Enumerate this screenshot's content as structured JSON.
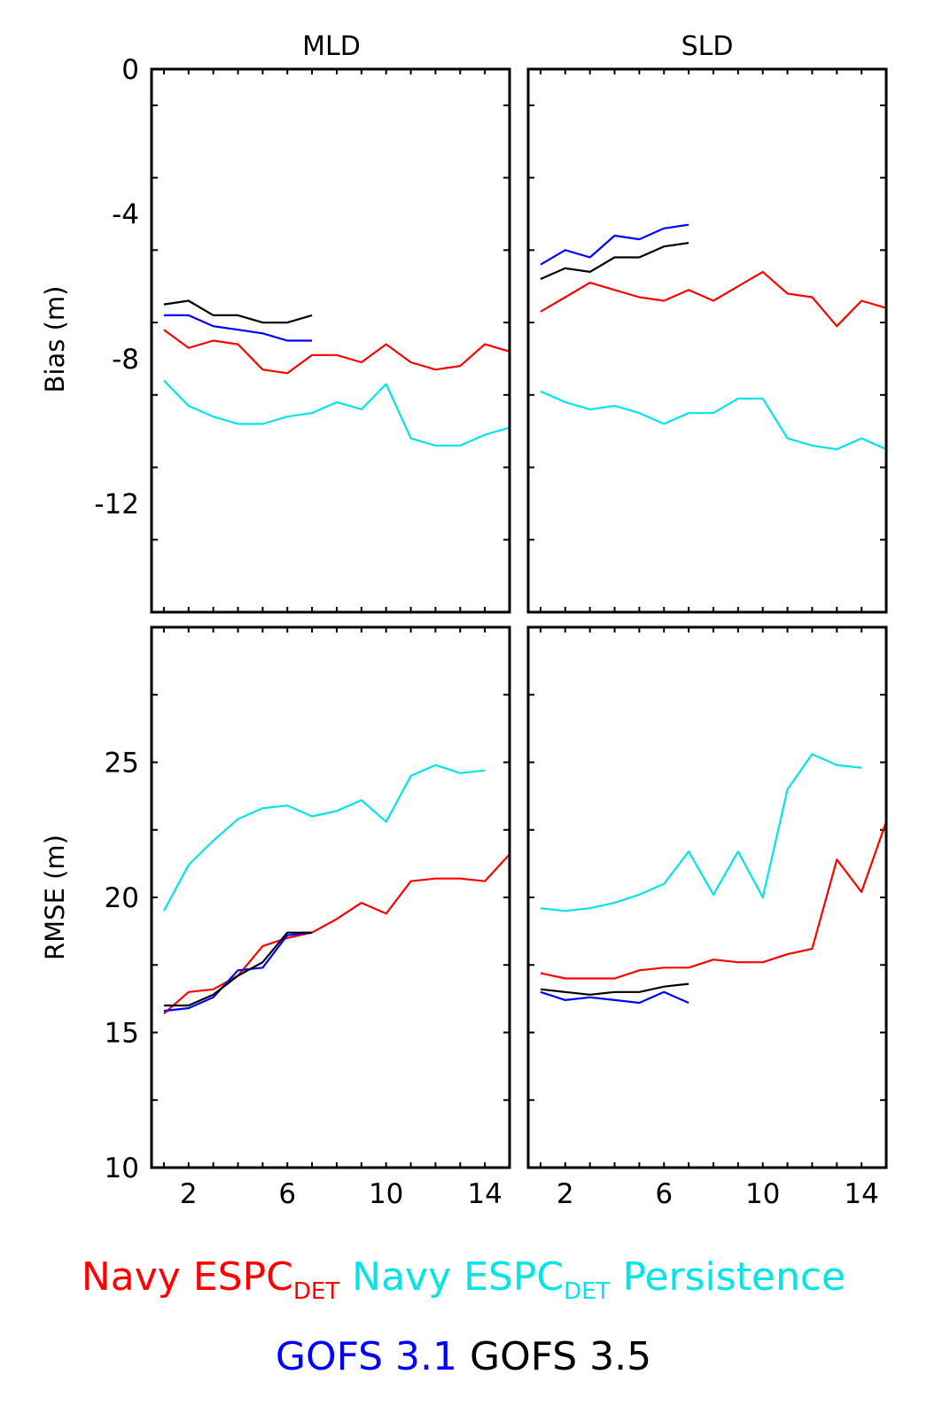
{
  "column_titles": [
    "MLD",
    "SLD"
  ],
  "row_labels": [
    "Bias (m)",
    "RMSE (m)"
  ],
  "legend": {
    "row1": [
      {
        "main": "Navy ESPC",
        "sub": "DET",
        "suffix": "",
        "color": "#ff0000"
      },
      {
        "main": "Navy ESPC",
        "sub": "DET",
        "suffix": " Persistence",
        "color": "#00e5e5"
      }
    ],
    "row2": [
      {
        "main": "GOFS 3.1",
        "sub": "",
        "suffix": "",
        "color": "#0000ff"
      },
      {
        "main": "GOFS 3.5",
        "sub": "",
        "suffix": "",
        "color": "#000000"
      }
    ]
  },
  "chart_data": [
    {
      "type": "line",
      "title": "MLD",
      "xlabel": "",
      "ylabel": "Bias (m)",
      "xlim": [
        0.5,
        15
      ],
      "ylim": [
        -15,
        0
      ],
      "xticks": [
        2,
        6,
        10,
        14
      ],
      "yticks": [
        0,
        -4,
        -8,
        -12
      ],
      "series": [
        {
          "name": "Navy ESPC DET",
          "color": "#ff0000",
          "x": [
            1,
            2,
            3,
            4,
            5,
            6,
            7,
            8,
            9,
            10,
            11,
            12,
            13,
            14,
            15
          ],
          "y": [
            -7.2,
            -7.7,
            -7.5,
            -7.6,
            -8.3,
            -8.4,
            -7.9,
            -7.9,
            -8.1,
            -7.6,
            -8.1,
            -8.3,
            -8.2,
            -7.6,
            -7.8
          ]
        },
        {
          "name": "Navy ESPC DET Persistence",
          "color": "#00e5e5",
          "x": [
            1,
            2,
            3,
            4,
            5,
            6,
            7,
            8,
            9,
            10,
            11,
            12,
            13,
            14,
            15
          ],
          "y": [
            -8.6,
            -9.3,
            -9.6,
            -9.8,
            -9.8,
            -9.6,
            -9.5,
            -9.2,
            -9.4,
            -8.7,
            -10.2,
            -10.4,
            -10.4,
            -10.1,
            -9.9
          ]
        },
        {
          "name": "GOFS 3.1",
          "color": "#0000ff",
          "x": [
            1,
            2,
            3,
            4,
            5,
            6,
            7
          ],
          "y": [
            -6.8,
            -6.8,
            -7.1,
            -7.2,
            -7.3,
            -7.5,
            -7.5
          ]
        },
        {
          "name": "GOFS 3.5",
          "color": "#000000",
          "x": [
            1,
            2,
            3,
            4,
            5,
            6,
            7
          ],
          "y": [
            -6.5,
            -6.4,
            -6.8,
            -6.8,
            -7.0,
            -7.0,
            -6.8
          ]
        }
      ]
    },
    {
      "type": "line",
      "title": "SLD",
      "xlabel": "",
      "ylabel": "",
      "xlim": [
        0.5,
        15
      ],
      "ylim": [
        -15,
        0
      ],
      "xticks": [
        2,
        6,
        10,
        14
      ],
      "yticks": [
        0,
        -4,
        -8,
        -12
      ],
      "series": [
        {
          "name": "Navy ESPC DET",
          "color": "#ff0000",
          "x": [
            1,
            2,
            3,
            4,
            5,
            6,
            7,
            8,
            9,
            10,
            11,
            12,
            13,
            14,
            15
          ],
          "y": [
            -6.7,
            -6.3,
            -5.9,
            -6.1,
            -6.3,
            -6.4,
            -6.1,
            -6.4,
            -6.0,
            -5.6,
            -6.2,
            -6.3,
            -7.1,
            -6.4,
            -6.6
          ]
        },
        {
          "name": "Navy ESPC DET Persistence",
          "color": "#00e5e5",
          "x": [
            1,
            2,
            3,
            4,
            5,
            6,
            7,
            8,
            9,
            10,
            11,
            12,
            13,
            14,
            15
          ],
          "y": [
            -8.9,
            -9.2,
            -9.4,
            -9.3,
            -9.5,
            -9.8,
            -9.5,
            -9.5,
            -9.1,
            -9.1,
            -10.2,
            -10.4,
            -10.5,
            -10.2,
            -10.5
          ]
        },
        {
          "name": "GOFS 3.1",
          "color": "#0000ff",
          "x": [
            1,
            2,
            3,
            4,
            5,
            6,
            7
          ],
          "y": [
            -5.4,
            -5.0,
            -5.2,
            -4.6,
            -4.7,
            -4.4,
            -4.3
          ]
        },
        {
          "name": "GOFS 3.5",
          "color": "#000000",
          "x": [
            1,
            2,
            3,
            4,
            5,
            6,
            7
          ],
          "y": [
            -5.8,
            -5.5,
            -5.6,
            -5.2,
            -5.2,
            -4.9,
            -4.8
          ]
        }
      ]
    },
    {
      "type": "line",
      "title": "",
      "xlabel": "",
      "ylabel": "RMSE (m)",
      "xlim": [
        0.5,
        15
      ],
      "ylim": [
        10,
        30
      ],
      "xticks": [
        2,
        6,
        10,
        14
      ],
      "yticks": [
        10,
        15,
        20,
        25
      ],
      "series": [
        {
          "name": "Navy ESPC DET",
          "color": "#ff0000",
          "x": [
            1,
            2,
            3,
            4,
            5,
            6,
            7,
            8,
            9,
            10,
            11,
            12,
            13,
            14,
            15
          ],
          "y": [
            15.7,
            16.5,
            16.6,
            17.1,
            18.2,
            18.5,
            18.7,
            19.2,
            19.8,
            19.4,
            20.6,
            20.7,
            20.7,
            20.6,
            21.6
          ]
        },
        {
          "name": "Navy ESPC DET Persistence",
          "color": "#00e5e5",
          "x": [
            1,
            2,
            3,
            4,
            5,
            6,
            7,
            8,
            9,
            10,
            11,
            12,
            13,
            14
          ],
          "y": [
            19.5,
            21.2,
            22.1,
            22.9,
            23.3,
            23.4,
            23.0,
            23.2,
            23.6,
            22.8,
            24.5,
            24.9,
            24.6,
            24.7
          ]
        },
        {
          "name": "GOFS 3.1",
          "color": "#0000ff",
          "x": [
            1,
            2,
            3,
            4,
            5,
            6,
            7
          ],
          "y": [
            15.8,
            15.9,
            16.3,
            17.3,
            17.4,
            18.6,
            18.7
          ]
        },
        {
          "name": "GOFS 3.5",
          "color": "#000000",
          "x": [
            1,
            2,
            3,
            4,
            5,
            6,
            7
          ],
          "y": [
            16.0,
            16.0,
            16.4,
            17.1,
            17.6,
            18.7,
            18.7
          ]
        }
      ]
    },
    {
      "type": "line",
      "title": "",
      "xlabel": "",
      "ylabel": "",
      "xlim": [
        0.5,
        15
      ],
      "ylim": [
        10,
        30
      ],
      "xticks": [
        2,
        6,
        10,
        14
      ],
      "yticks": [
        10,
        15,
        20,
        25
      ],
      "series": [
        {
          "name": "Navy ESPC DET",
          "color": "#ff0000",
          "x": [
            1,
            2,
            3,
            4,
            5,
            6,
            7,
            8,
            9,
            10,
            11,
            12,
            13,
            14,
            15
          ],
          "y": [
            17.2,
            17.0,
            17.0,
            17.0,
            17.3,
            17.4,
            17.4,
            17.7,
            17.6,
            17.6,
            17.9,
            18.1,
            21.4,
            20.2,
            22.8
          ]
        },
        {
          "name": "Navy ESPC DET Persistence",
          "color": "#00e5e5",
          "x": [
            1,
            2,
            3,
            4,
            5,
            6,
            7,
            8,
            9,
            10,
            11,
            12,
            13,
            14
          ],
          "y": [
            19.6,
            19.5,
            19.6,
            19.8,
            20.1,
            20.5,
            21.7,
            20.1,
            21.7,
            20.0,
            24.0,
            25.3,
            24.9,
            24.8
          ]
        },
        {
          "name": "GOFS 3.1",
          "color": "#0000ff",
          "x": [
            1,
            2,
            3,
            4,
            5,
            6,
            7
          ],
          "y": [
            16.5,
            16.2,
            16.3,
            16.2,
            16.1,
            16.5,
            16.1
          ]
        },
        {
          "name": "GOFS 3.5",
          "color": "#000000",
          "x": [
            1,
            2,
            3,
            4,
            5,
            6,
            7
          ],
          "y": [
            16.6,
            16.5,
            16.4,
            16.5,
            16.5,
            16.7,
            16.8
          ]
        }
      ]
    }
  ]
}
